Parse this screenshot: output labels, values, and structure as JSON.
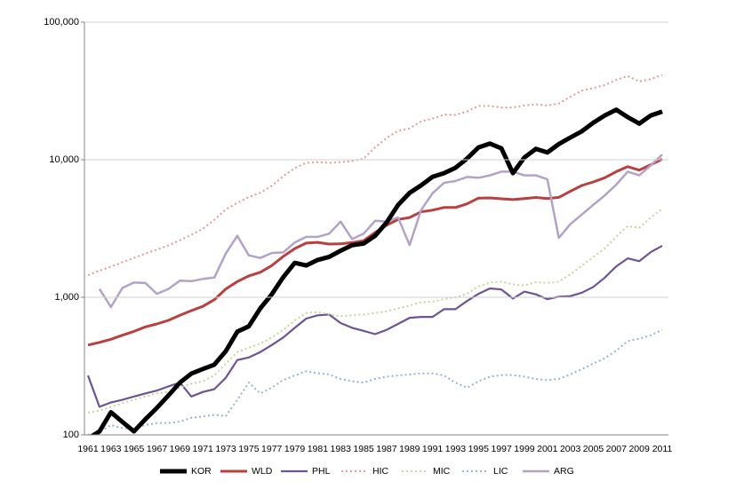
{
  "chart_data": {
    "type": "line",
    "log_scale": true,
    "grid": true,
    "legend": "bottom",
    "categories": [
      "1961",
      null,
      "1963",
      null,
      "1965",
      null,
      "1967",
      null,
      "1969",
      null,
      "1971",
      null,
      "1973",
      null,
      "1975",
      null,
      "1977",
      null,
      "1979",
      null,
      "1981",
      null,
      "1983",
      null,
      "1985",
      null,
      "1987",
      null,
      "1989",
      null,
      "1991",
      null,
      "1993",
      null,
      "1995",
      null,
      "1997",
      null,
      "1999",
      null,
      "2001",
      null,
      "2003",
      null,
      "2005",
      null,
      "2007",
      null,
      "2009",
      null,
      "2011"
    ],
    "ylim": [
      100,
      100000
    ],
    "yticks": [
      100,
      {
        "value": 1000,
        "label": "1,000"
      },
      {
        "value": 10000,
        "label": "10,000"
      },
      {
        "value": 100000,
        "label": "100,000"
      }
    ],
    "series": [
      {
        "name": "KOR",
        "color": "#000000",
        "style": "solid",
        "width": 5,
        "values": [
          94,
          106,
          146,
          124,
          106,
          130,
          157,
          193,
          240,
          279,
          301,
          324,
          406,
          563,
          615,
          831,
          1051,
          1400,
          1780,
          1704,
          1870,
          1970,
          2180,
          2390,
          2460,
          2800,
          3500,
          4690,
          5740,
          6510,
          7520,
          7990,
          8740,
          10200,
          12300,
          13100,
          12100,
          7990,
          10400,
          12000,
          11300,
          13000,
          14500,
          16100,
          18600,
          21000,
          23100,
          20400,
          18300,
          21000,
          22400
        ]
      },
      {
        "name": "WLD",
        "color": "#b9403e",
        "style": "solid",
        "width": 3,
        "values": [
          450,
          470,
          495,
          530,
          565,
          610,
          640,
          680,
          740,
          800,
          860,
          960,
          1150,
          1300,
          1430,
          1520,
          1700,
          1980,
          2260,
          2480,
          2510,
          2440,
          2450,
          2500,
          2580,
          2960,
          3340,
          3680,
          3800,
          4180,
          4300,
          4500,
          4500,
          4780,
          5260,
          5280,
          5200,
          5130,
          5220,
          5320,
          5220,
          5330,
          5890,
          6500,
          6900,
          7400,
          8200,
          8900,
          8400,
          9200,
          10100
        ]
      },
      {
        "name": "PHL",
        "color": "#6f5394",
        "style": "solid",
        "width": 2.2,
        "values": [
          270,
          160,
          172,
          180,
          190,
          200,
          210,
          225,
          240,
          190,
          205,
          215,
          260,
          350,
          365,
          400,
          450,
          510,
          600,
          700,
          740,
          750,
          650,
          600,
          570,
          540,
          580,
          640,
          710,
          720,
          720,
          820,
          820,
          940,
          1060,
          1160,
          1140,
          980,
          1100,
          1050,
          970,
          1010,
          1020,
          1080,
          1190,
          1390,
          1680,
          1920,
          1830,
          2130,
          2370
        ]
      },
      {
        "name": "HIC",
        "color": "#e39a98",
        "style": "dotted",
        "width": 2,
        "values": [
          1450,
          1560,
          1670,
          1800,
          1930,
          2080,
          2220,
          2380,
          2600,
          2850,
          3150,
          3650,
          4350,
          4850,
          5350,
          5750,
          6450,
          7600,
          8700,
          9500,
          9600,
          9500,
          9600,
          9800,
          10200,
          12300,
          14400,
          16200,
          16900,
          19000,
          19900,
          21300,
          21200,
          22400,
          24600,
          24600,
          24000,
          24000,
          24800,
          25300,
          24800,
          25600,
          28700,
          31800,
          33200,
          34900,
          38100,
          40600,
          37000,
          38600,
          41400
        ]
      },
      {
        "name": "MIC",
        "color": "#c3d69b",
        "style": "dotted",
        "width": 2,
        "values": [
          145,
          150,
          160,
          170,
          180,
          190,
          200,
          205,
          220,
          235,
          245,
          270,
          330,
          400,
          430,
          460,
          510,
          580,
          680,
          770,
          780,
          750,
          730,
          740,
          750,
          770,
          790,
          830,
          870,
          920,
          930,
          970,
          1000,
          1060,
          1200,
          1280,
          1300,
          1240,
          1220,
          1290,
          1270,
          1300,
          1470,
          1700,
          1960,
          2270,
          2760,
          3290,
          3200,
          3800,
          4400
        ]
      },
      {
        "name": "LIC",
        "color": "#95b3d7",
        "style": "dotted",
        "width": 2,
        "values": [
          100,
          105,
          118,
          112,
          110,
          118,
          122,
          122,
          125,
          133,
          136,
          140,
          137,
          180,
          240,
          200,
          220,
          250,
          270,
          290,
          280,
          275,
          255,
          245,
          240,
          255,
          265,
          270,
          275,
          280,
          280,
          270,
          240,
          220,
          245,
          265,
          272,
          272,
          265,
          255,
          250,
          255,
          275,
          300,
          330,
          360,
          410,
          480,
          500,
          530,
          580
        ]
      },
      {
        "name": "ARG",
        "color": "#b3a2c7",
        "style": "solid",
        "width": 2.5,
        "values": [
          null,
          1150,
          850,
          1170,
          1280,
          1270,
          1060,
          1150,
          1320,
          1310,
          1360,
          1390,
          2080,
          2800,
          2020,
          1930,
          2100,
          2120,
          2500,
          2750,
          2750,
          2900,
          3550,
          2650,
          2900,
          3600,
          3550,
          3800,
          2400,
          4300,
          5700,
          6800,
          7000,
          7500,
          7400,
          7700,
          8200,
          8200,
          7700,
          7700,
          7200,
          2700,
          3400,
          4000,
          4700,
          5500,
          6600,
          8200,
          7700,
          9100,
          10900
        ]
      }
    ]
  }
}
